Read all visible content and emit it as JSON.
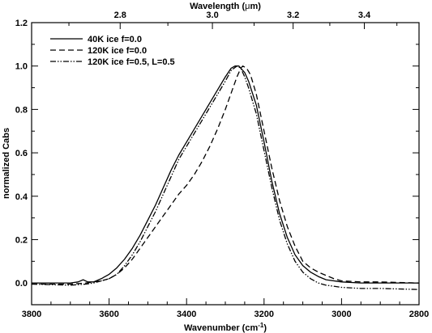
{
  "chart_data": {
    "type": "line",
    "xlabel_pre": "Wavenumber (cm",
    "xlabel_sup": "-1",
    "xlabel_post": ")",
    "top_xlabel_pre": "Wavelength (",
    "top_xlabel_mu": "μ",
    "top_xlabel_post": "m)",
    "ylabel": "normalized Cabs",
    "xlim": [
      3800,
      2800
    ],
    "ylim": [
      -0.1,
      1.2
    ],
    "top_axis_unit": "μm",
    "x_ticks": [
      3800,
      3600,
      3400,
      3200,
      3000,
      2800
    ],
    "x_tick_labels": [
      "3800",
      "3600",
      "3400",
      "3200",
      "3000",
      "2800"
    ],
    "top_ticks": [
      2.8,
      3.0,
      3.2,
      3.4
    ],
    "top_tick_labels": [
      "2.8",
      "3.0",
      "3.2",
      "3.4"
    ],
    "y_ticks": [
      0.0,
      0.2,
      0.4,
      0.6,
      0.8,
      1.0,
      1.2
    ],
    "y_tick_labels": [
      "0.0",
      "0.2",
      "0.4",
      "0.6",
      "0.8",
      "1.0",
      "1.2"
    ],
    "legend_position": "top-left",
    "series": [
      {
        "name": "40K ice f=0.0",
        "dash": "solid",
        "points": [
          [
            3800,
            0.0
          ],
          [
            3700,
            0.0
          ],
          [
            3680,
            0.005
          ],
          [
            3667,
            0.015
          ],
          [
            3655,
            0.005
          ],
          [
            3640,
            0.005
          ],
          [
            3620,
            0.02
          ],
          [
            3600,
            0.04
          ],
          [
            3580,
            0.07
          ],
          [
            3560,
            0.11
          ],
          [
            3540,
            0.16
          ],
          [
            3520,
            0.22
          ],
          [
            3500,
            0.29
          ],
          [
            3480,
            0.36
          ],
          [
            3460,
            0.44
          ],
          [
            3440,
            0.52
          ],
          [
            3420,
            0.59
          ],
          [
            3400,
            0.65
          ],
          [
            3380,
            0.71
          ],
          [
            3360,
            0.77
          ],
          [
            3340,
            0.83
          ],
          [
            3320,
            0.89
          ],
          [
            3300,
            0.95
          ],
          [
            3285,
            0.99
          ],
          [
            3275,
            1.0
          ],
          [
            3265,
            1.0
          ],
          [
            3250,
            0.97
          ],
          [
            3240,
            0.93
          ],
          [
            3220,
            0.82
          ],
          [
            3200,
            0.65
          ],
          [
            3180,
            0.47
          ],
          [
            3160,
            0.32
          ],
          [
            3140,
            0.21
          ],
          [
            3120,
            0.13
          ],
          [
            3100,
            0.08
          ],
          [
            3080,
            0.05
          ],
          [
            3060,
            0.03
          ],
          [
            3040,
            0.015
          ],
          [
            3000,
            0.005
          ],
          [
            2950,
            0.0
          ],
          [
            2900,
            0.0
          ],
          [
            2800,
            0.0
          ]
        ]
      },
      {
        "name": "120K ice f=0.0",
        "dash": "dashed",
        "points": [
          [
            3800,
            -0.005
          ],
          [
            3700,
            -0.005
          ],
          [
            3660,
            0.0
          ],
          [
            3640,
            0.005
          ],
          [
            3620,
            0.01
          ],
          [
            3600,
            0.02
          ],
          [
            3580,
            0.04
          ],
          [
            3560,
            0.07
          ],
          [
            3540,
            0.11
          ],
          [
            3520,
            0.16
          ],
          [
            3500,
            0.21
          ],
          [
            3480,
            0.26
          ],
          [
            3460,
            0.31
          ],
          [
            3440,
            0.36
          ],
          [
            3420,
            0.41
          ],
          [
            3400,
            0.45
          ],
          [
            3380,
            0.5
          ],
          [
            3360,
            0.56
          ],
          [
            3340,
            0.63
          ],
          [
            3320,
            0.71
          ],
          [
            3300,
            0.8
          ],
          [
            3280,
            0.9
          ],
          [
            3270,
            0.95
          ],
          [
            3260,
            0.99
          ],
          [
            3255,
            1.0
          ],
          [
            3245,
            0.99
          ],
          [
            3235,
            0.96
          ],
          [
            3220,
            0.87
          ],
          [
            3200,
            0.7
          ],
          [
            3180,
            0.53
          ],
          [
            3160,
            0.38
          ],
          [
            3140,
            0.26
          ],
          [
            3120,
            0.17
          ],
          [
            3100,
            0.1
          ],
          [
            3080,
            0.07
          ],
          [
            3060,
            0.05
          ],
          [
            3040,
            0.035
          ],
          [
            3020,
            0.02
          ],
          [
            3000,
            0.01
          ],
          [
            2950,
            0.005
          ],
          [
            2900,
            0.005
          ],
          [
            2800,
            0.0
          ]
        ]
      },
      {
        "name": "120K ice f=0.5, L=0.5",
        "dash": "dash-dot-dot",
        "points": [
          [
            3800,
            -0.005
          ],
          [
            3700,
            -0.01
          ],
          [
            3660,
            -0.005
          ],
          [
            3640,
            0.0
          ],
          [
            3620,
            0.01
          ],
          [
            3600,
            0.02
          ],
          [
            3580,
            0.04
          ],
          [
            3560,
            0.08
          ],
          [
            3540,
            0.13
          ],
          [
            3520,
            0.19
          ],
          [
            3500,
            0.26
          ],
          [
            3480,
            0.33
          ],
          [
            3460,
            0.41
          ],
          [
            3440,
            0.49
          ],
          [
            3420,
            0.57
          ],
          [
            3400,
            0.63
          ],
          [
            3380,
            0.69
          ],
          [
            3360,
            0.75
          ],
          [
            3340,
            0.81
          ],
          [
            3320,
            0.87
          ],
          [
            3300,
            0.93
          ],
          [
            3285,
            0.98
          ],
          [
            3270,
            1.0
          ],
          [
            3260,
            0.99
          ],
          [
            3250,
            0.95
          ],
          [
            3240,
            0.9
          ],
          [
            3220,
            0.78
          ],
          [
            3200,
            0.61
          ],
          [
            3180,
            0.44
          ],
          [
            3160,
            0.29
          ],
          [
            3140,
            0.18
          ],
          [
            3120,
            0.1
          ],
          [
            3100,
            0.05
          ],
          [
            3080,
            0.02
          ],
          [
            3060,
            0.0
          ],
          [
            3040,
            -0.01
          ],
          [
            3000,
            -0.02
          ],
          [
            2950,
            -0.025
          ],
          [
            2900,
            -0.025
          ],
          [
            2800,
            -0.03
          ]
        ]
      }
    ]
  }
}
